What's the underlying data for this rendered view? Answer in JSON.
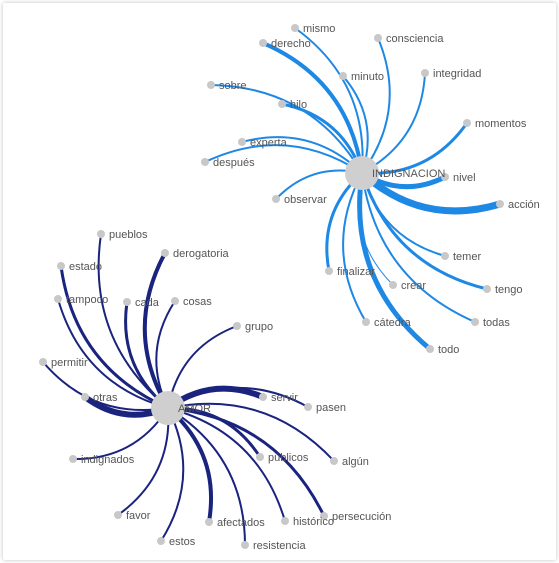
{
  "colors": {
    "hub": "#cfcfcf",
    "node": "#c8c8c8",
    "text": "#555555"
  },
  "clusters": [
    {
      "hub": "INDIGNACION",
      "edge_color": "#1e88e5",
      "words": [
        {
          "label": "mismo",
          "weight": 2
        },
        {
          "label": "derecho",
          "weight": 4
        },
        {
          "label": "consciencia",
          "weight": 2
        },
        {
          "label": "sobre",
          "weight": 2
        },
        {
          "label": "minuto",
          "weight": 2
        },
        {
          "label": "integridad",
          "weight": 2
        },
        {
          "label": "hilo",
          "weight": 3
        },
        {
          "label": "momentos",
          "weight": 3
        },
        {
          "label": "experta",
          "weight": 2
        },
        {
          "label": "después",
          "weight": 2
        },
        {
          "label": "nivel",
          "weight": 5
        },
        {
          "label": "acción",
          "weight": 7
        },
        {
          "label": "observar",
          "weight": 2
        },
        {
          "label": "temer",
          "weight": 2
        },
        {
          "label": "finalizar",
          "weight": 3
        },
        {
          "label": "crear",
          "weight": 1
        },
        {
          "label": "tengo",
          "weight": 3
        },
        {
          "label": "cátedra",
          "weight": 2
        },
        {
          "label": "todas",
          "weight": 2
        },
        {
          "label": "todo",
          "weight": 5
        }
      ]
    },
    {
      "hub": "AMOR",
      "edge_color": "#1a237e",
      "words": [
        {
          "label": "pueblos",
          "weight": 2
        },
        {
          "label": "estado",
          "weight": 3
        },
        {
          "label": "derogatoria",
          "weight": 4
        },
        {
          "label": "tampoco",
          "weight": 2
        },
        {
          "label": "cada",
          "weight": 3
        },
        {
          "label": "cosas",
          "weight": 2
        },
        {
          "label": "grupo",
          "weight": 2
        },
        {
          "label": "permitir",
          "weight": 2
        },
        {
          "label": "otras",
          "weight": 6
        },
        {
          "label": "servir",
          "weight": 6
        },
        {
          "label": "pasen",
          "weight": 2
        },
        {
          "label": "indignados",
          "weight": 2
        },
        {
          "label": "públicos",
          "weight": 3
        },
        {
          "label": "algún",
          "weight": 2
        },
        {
          "label": "persecución",
          "weight": 3
        },
        {
          "label": "favor",
          "weight": 2
        },
        {
          "label": "histórico",
          "weight": 2
        },
        {
          "label": "afectados",
          "weight": 4
        },
        {
          "label": "estos",
          "weight": 2
        },
        {
          "label": "resistencia",
          "weight": 2
        }
      ]
    }
  ]
}
